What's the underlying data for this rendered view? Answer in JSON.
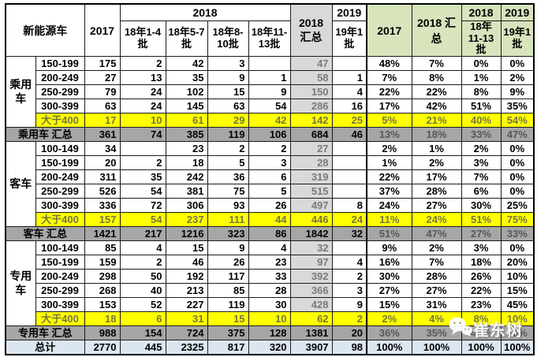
{
  "watermark": {
    "text": "崔东树",
    "icon": "wechat-icon"
  },
  "colors": {
    "highlight_yellow": "#ffff00",
    "header_green": "#d7e4bc",
    "summary_col_gray": "#d9d9d9",
    "total_row_gray": "#a6a6a6",
    "grand_total_blue": "#dce6f1"
  },
  "chart_data": {
    "type": "table",
    "header": {
      "vehicle": "新能源车",
      "y2017": "2017",
      "y2018": "2018",
      "batches": [
        "18年1-4批",
        "18年5-7批",
        "18年8-10批",
        "18年11-13批"
      ],
      "total2018": "2018 汇总",
      "y2019": "2019",
      "batch19": "19年1批",
      "pct": {
        "y2017": "2017",
        "total2018": "2018 汇总",
        "y2018": "2018",
        "batch1113": "18年11-13批",
        "y2019": "2019",
        "batch19": "19年1批"
      }
    },
    "sections": [
      {
        "group": "乘用车",
        "rows": [
          {
            "range": "150-199",
            "yellow": false,
            "v": [
              "175",
              "2",
              "42",
              "3",
              "",
              "47",
              "",
              "48%",
              "7%",
              "0%",
              "0%"
            ]
          },
          {
            "range": "200-249",
            "yellow": false,
            "v": [
              "27",
              "13",
              "35",
              "9",
              "1",
              "58",
              "1",
              "7%",
              "8%",
              "1%",
              "2%"
            ]
          },
          {
            "range": "250-299",
            "yellow": false,
            "v": [
              "79",
              "24",
              "102",
              "15",
              "9",
              "150",
              "4",
              "22%",
              "22%",
              "8%",
              "9%"
            ]
          },
          {
            "range": "300-399",
            "yellow": false,
            "v": [
              "63",
              "24",
              "145",
              "63",
              "54",
              "286",
              "16",
              "17%",
              "42%",
              "51%",
              "35%"
            ]
          },
          {
            "range": "大于400",
            "yellow": true,
            "v": [
              "17",
              "10",
              "61",
              "29",
              "42",
              "142",
              "25",
              "5%",
              "21%",
              "40%",
              "54%"
            ]
          }
        ],
        "total": {
          "label": "乘用车 汇总",
          "v": [
            "361",
            "74",
            "385",
            "119",
            "106",
            "684",
            "46",
            "13%",
            "18%",
            "33%",
            "47%"
          ]
        }
      },
      {
        "group": "客车",
        "rows": [
          {
            "range": "100-149",
            "yellow": false,
            "v": [
              "34",
              "",
              "23",
              "2",
              "2",
              "27",
              "",
              "2%",
              "1%",
              "2%",
              "0%"
            ]
          },
          {
            "range": "150-199",
            "yellow": false,
            "v": [
              "20",
              "2",
              "18",
              "5",
              "3",
              "28",
              "",
              "1%",
              "2%",
              "3%",
              "0%"
            ]
          },
          {
            "range": "200-249",
            "yellow": false,
            "v": [
              "311",
              "35",
              "242",
              "36",
              "6",
              "319",
              "",
              "22%",
              "17%",
              "7%",
              "0%"
            ]
          },
          {
            "range": "250-299",
            "yellow": false,
            "v": [
              "526",
              "54",
              "381",
              "75",
              "5",
              "515",
              "",
              "37%",
              "28%",
              "6%",
              "0%"
            ]
          },
          {
            "range": "300-399",
            "yellow": false,
            "v": [
              "336",
              "72",
              "306",
              "93",
              "26",
              "497",
              "8",
              "24%",
              "27%",
              "30%",
              "25%"
            ]
          },
          {
            "range": "大于400",
            "yellow": true,
            "v": [
              "157",
              "54",
              "237",
              "111",
              "44",
              "446",
              "24",
              "11%",
              "24%",
              "51%",
              "75%"
            ]
          }
        ],
        "total": {
          "label": "客车 汇总",
          "v": [
            "1421",
            "217",
            "1216",
            "323",
            "86",
            "1842",
            "32",
            "51%",
            "47%",
            "27%",
            "33%"
          ]
        }
      },
      {
        "group": "专用车",
        "rows": [
          {
            "range": "100-149",
            "yellow": false,
            "v": [
              "85",
              "4",
              "15",
              "9",
              "4",
              "32",
              "",
              "9%",
              "2%",
              "3%",
              "0%"
            ]
          },
          {
            "range": "150-199",
            "yellow": false,
            "v": [
              "159",
              "2",
              "46",
              "26",
              "23",
              "97",
              "4",
              "16%",
              "7%",
              "18%",
              "20%"
            ]
          },
          {
            "range": "200-249",
            "yellow": false,
            "v": [
              "298",
              "50",
              "192",
              "117",
              "33",
              "392",
              "2",
              "30%",
              "28%",
              "26%",
              "10%"
            ]
          },
          {
            "range": "250-299",
            "yellow": false,
            "v": [
              "268",
              "40",
              "213",
              "85",
              "28",
              "366",
              "3",
              "27%",
              "27%",
              "22%",
              "15%"
            ]
          },
          {
            "range": "300-399",
            "yellow": false,
            "v": [
              "153",
              "52",
              "227",
              "119",
              "30",
              "428",
              "9",
              "15%",
              "31%",
              "23%",
              "45%"
            ]
          },
          {
            "range": "大于400",
            "yellow": true,
            "v": [
              "18",
              "6",
              "31",
              "15",
              "10",
              "62",
              "2",
              "2%",
              "4%",
              "8%",
              "10%"
            ]
          }
        ],
        "total": {
          "label": "专用车 汇总",
          "v": [
            "988",
            "154",
            "724",
            "375",
            "128",
            "1381",
            "20",
            "36%",
            "35%",
            "40%",
            "20%"
          ]
        }
      }
    ],
    "grand_total": {
      "label": "总计",
      "v": [
        "2770",
        "445",
        "2325",
        "817",
        "320",
        "3907",
        "98",
        "100%",
        "100%",
        "100%",
        "100%"
      ]
    }
  }
}
